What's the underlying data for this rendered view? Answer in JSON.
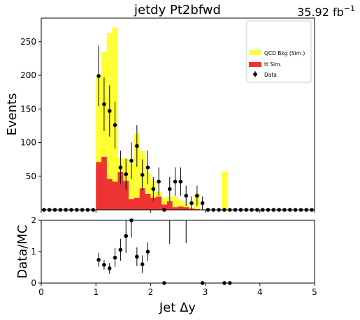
{
  "header": {
    "title": "jetdy  Pt2bfwd",
    "lumi_value": "35.92 fb",
    "lumi_exp": "−1"
  },
  "legend": {
    "qcd": "QCD Bkg (Sim.)",
    "ttbar_prefix": "t",
    "ttbar_suffix": "t Sim.",
    "data": "Data"
  },
  "colors": {
    "qcd": "#ffff33",
    "ttbar": "#ee3333",
    "data": "#000000"
  },
  "chart_data": [
    {
      "type": "bar",
      "name": "main-panel",
      "stacked": true,
      "xlabel": "",
      "ylabel": "Events",
      "xlim": [
        0,
        5
      ],
      "ylim": [
        0,
        285
      ],
      "yticks": [
        50,
        100,
        150,
        200,
        250
      ],
      "bin_width": 0.1,
      "bin_centers": [
        1.05,
        1.15,
        1.25,
        1.35,
        1.45,
        1.55,
        1.65,
        1.75,
        1.85,
        1.95,
        2.05,
        2.15,
        2.25,
        2.35,
        2.45,
        2.55,
        2.65,
        2.75,
        2.85,
        2.95,
        3.05,
        3.15,
        3.25,
        3.35
      ],
      "series": [
        {
          "name": "t t Sim.",
          "values": [
            71,
            79,
            46,
            42,
            56,
            43,
            16,
            18,
            32,
            24,
            18,
            20,
            8,
            13,
            4,
            5,
            4,
            2,
            1,
            0,
            0,
            0,
            0,
            0
          ]
        },
        {
          "name": "QCD Bkg (Sim.)",
          "values": [
            128,
            156,
            217,
            229,
            21,
            33,
            52,
            95,
            55,
            31,
            25,
            7,
            10,
            6,
            16,
            9,
            6,
            1,
            23,
            0,
            0,
            0,
            0,
            57
          ]
        }
      ],
      "data_points": {
        "name": "Data",
        "x": [
          1.05,
          1.15,
          1.25,
          1.35,
          1.45,
          1.55,
          1.65,
          1.75,
          1.85,
          1.95,
          2.05,
          2.15,
          2.25,
          2.35,
          2.45,
          2.55,
          2.65,
          2.75,
          2.85,
          2.95
        ],
        "y": [
          199,
          157,
          147,
          126,
          63,
          53,
          73,
          95,
          52,
          63,
          31,
          42,
          0,
          31,
          42,
          42,
          21,
          10,
          21,
          10
        ],
        "yerr": [
          45,
          40,
          38,
          35,
          25,
          23,
          27,
          31,
          23,
          25,
          18,
          21,
          0,
          18,
          21,
          21,
          15,
          10,
          15,
          10
        ],
        "zero_x": [
          0.05,
          0.15,
          0.25,
          0.35,
          0.45,
          0.55,
          0.65,
          0.75,
          0.85,
          0.95,
          3.05,
          3.15,
          3.25,
          3.35,
          3.45,
          3.55,
          3.65,
          3.75,
          3.85,
          3.95,
          4.05,
          4.15,
          4.25,
          4.35,
          4.45,
          4.55,
          4.65,
          4.75,
          4.85,
          4.95
        ]
      }
    },
    {
      "type": "scatter",
      "name": "ratio-panel",
      "xlabel": "Jet Δy",
      "ylabel": "Data/MC",
      "xlim": [
        0,
        5
      ],
      "ylim": [
        0,
        2
      ],
      "xticks": [
        0,
        1,
        2,
        3,
        4,
        5
      ],
      "yticks": [
        0,
        1,
        2
      ],
      "x": [
        1.05,
        1.15,
        1.25,
        1.35,
        1.45,
        1.55,
        1.65,
        1.75,
        1.85,
        1.95,
        2.25,
        2.95,
        3.35,
        3.45
      ],
      "y": [
        0.74,
        0.58,
        0.47,
        0.81,
        1.06,
        1.5,
        2.0,
        0.84,
        0.6,
        1.0,
        0.0,
        0.0,
        0.0,
        0.0
      ],
      "yerr": [
        0.22,
        0.15,
        0.17,
        0.3,
        0.35,
        0.55,
        0.55,
        0.3,
        0.28,
        0.3,
        0,
        0,
        0,
        0
      ],
      "long_bars": [
        {
          "x": 2.35,
          "low": 1.25,
          "high": 2.0
        },
        {
          "x": 2.65,
          "low": 1.27,
          "high": 2.0
        }
      ]
    }
  ]
}
